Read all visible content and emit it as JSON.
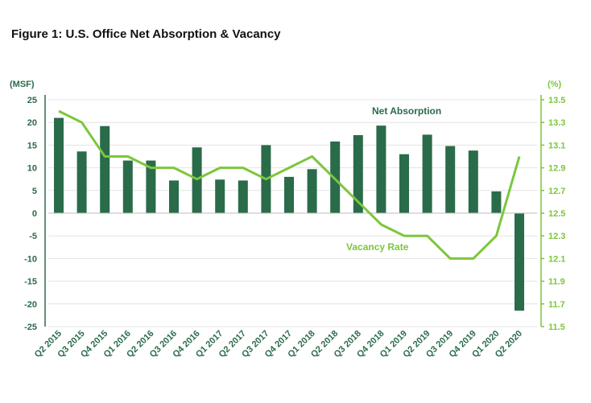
{
  "title": "Figure 1: U.S. Office Net Absorption & Vacancy",
  "chart_data": {
    "type": "bar",
    "categories": [
      "Q2 2015",
      "Q3 2015",
      "Q4 2015",
      "Q1 2016",
      "Q2 2016",
      "Q3 2016",
      "Q4 2016",
      "Q1 2017",
      "Q2 2017",
      "Q3 2017",
      "Q4 2017",
      "Q1 2018",
      "Q2 2018",
      "Q3 2018",
      "Q4 2018",
      "Q1 2019",
      "Q2 2019",
      "Q3 2019",
      "Q4 2019",
      "Q1 2020",
      "Q2 2020"
    ],
    "series": [
      {
        "name": "Net Absorption",
        "type": "bar",
        "axis": "left",
        "values": [
          21,
          13.6,
          19.2,
          11.6,
          11.6,
          7.2,
          14.5,
          7.4,
          7.2,
          15,
          8,
          9.7,
          15.8,
          17.2,
          19.3,
          13,
          17.3,
          14.8,
          13.8,
          4.8,
          -21.5
        ]
      },
      {
        "name": "Vacancy Rate",
        "type": "line",
        "axis": "right",
        "values": [
          13.4,
          13.3,
          13.0,
          13.0,
          12.9,
          12.9,
          12.8,
          12.9,
          12.9,
          12.8,
          12.9,
          13.0,
          12.8,
          12.6,
          12.4,
          12.3,
          12.3,
          12.1,
          12.1,
          12.3,
          13.0
        ]
      }
    ],
    "y_left": {
      "label": "(MSF)",
      "min": -25,
      "max": 25,
      "ticks": [
        25,
        20,
        15,
        10,
        5,
        0,
        -5,
        -10,
        -15,
        -20,
        -25
      ]
    },
    "y_right": {
      "label": "(%)",
      "min": 11.5,
      "max": 13.5,
      "ticks": [
        "13.5",
        "13.3",
        "13.1",
        "12.9",
        "12.7",
        "12.5",
        "12.3",
        "12.1",
        "11.9",
        "11.7",
        "11.5"
      ]
    },
    "annotations": {
      "bar": "Net Absorption",
      "line": "Vacancy Rate"
    },
    "colors": {
      "bar": "#2a6b4a",
      "line": "#7cc63c",
      "left_axis_text": "#2a6b4a",
      "right_axis_text": "#7cc63c",
      "grid": "#e3e3e3"
    },
    "grid": true,
    "legend": "annotations"
  }
}
